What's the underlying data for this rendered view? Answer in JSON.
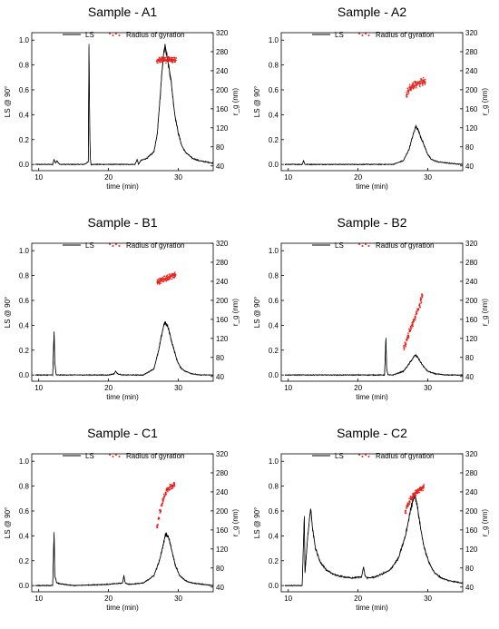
{
  "chart_data": [
    {
      "type": "line",
      "title": "Sample - A1",
      "xlabel": "time (min)",
      "ylabel": "LS @ 90°",
      "y2label": "r_g (nm)",
      "xlim": [
        9,
        35
      ],
      "ylim": [
        -0.05,
        1.06
      ],
      "y2lim": [
        30,
        320
      ],
      "xticks": [
        10,
        20,
        30
      ],
      "yticks": [
        0.0,
        0.2,
        0.4,
        0.6,
        0.8,
        1.0
      ],
      "y2ticks": [
        40,
        80,
        120,
        160,
        200,
        240,
        280,
        320
      ],
      "legend": {
        "position": "top",
        "entries": [
          "LS",
          "Radius of gyration"
        ]
      },
      "colors": {
        "ls": "#000000",
        "rg": "#e8231f"
      },
      "series": [
        {
          "name": "LS",
          "axis": "left",
          "x": [
            9.5,
            12.0,
            12.2,
            12.4,
            12.6,
            13.0,
            16.5,
            17.1,
            17.2,
            17.3,
            17.4,
            17.5,
            17.7,
            18.5,
            23.8,
            24.1,
            24.3,
            24.6,
            25.5,
            26.5,
            27.0,
            27.4,
            27.8,
            28.1,
            28.3,
            28.6,
            28.9,
            29.2,
            29.5,
            30.0,
            30.5,
            31.0,
            32.0,
            33.0,
            34.0,
            35.0
          ],
          "y": [
            0.0,
            0.0,
            0.04,
            0.01,
            0.03,
            0.0,
            0.0,
            0.02,
            0.97,
            0.32,
            0.04,
            0.0,
            0.0,
            0.0,
            0.0,
            0.04,
            0.0,
            0.03,
            0.05,
            0.1,
            0.25,
            0.55,
            0.85,
            0.97,
            0.9,
            0.8,
            0.7,
            0.55,
            0.4,
            0.25,
            0.15,
            0.1,
            0.05,
            0.03,
            0.02,
            0.01
          ]
        },
        {
          "name": "Radius of gyration",
          "axis": "right",
          "marker": "dot",
          "x": [
            27.0,
            27.2,
            27.4,
            27.6,
            27.8,
            28.0,
            28.2,
            28.4,
            28.6,
            28.8,
            29.0,
            29.2,
            29.4,
            29.6
          ],
          "y": [
            262,
            263,
            262,
            264,
            263,
            263,
            262,
            263,
            264,
            262,
            263,
            262,
            263,
            262
          ]
        }
      ]
    },
    {
      "type": "line",
      "title": "Sample - A2",
      "xlabel": "time (min)",
      "ylabel": "LS @ 90°",
      "y2label": "r_g (nm)",
      "xlim": [
        9,
        35
      ],
      "ylim": [
        -0.05,
        1.06
      ],
      "y2lim": [
        30,
        320
      ],
      "xticks": [
        10,
        20,
        30
      ],
      "yticks": [
        0.0,
        0.2,
        0.4,
        0.6,
        0.8,
        1.0
      ],
      "y2ticks": [
        40,
        80,
        120,
        160,
        200,
        240,
        280,
        320
      ],
      "legend": {
        "position": "top",
        "entries": [
          "LS",
          "Radius of gyration"
        ]
      },
      "colors": {
        "ls": "#000000",
        "rg": "#e8231f"
      },
      "series": [
        {
          "name": "LS",
          "axis": "left",
          "x": [
            9.5,
            12.0,
            12.2,
            12.4,
            13.0,
            25.0,
            26.5,
            27.3,
            27.9,
            28.3,
            28.6,
            29.0,
            29.5,
            30.0,
            30.5,
            31.5,
            33.0,
            35.0
          ],
          "y": [
            0.0,
            0.0,
            0.03,
            0.0,
            0.0,
            0.0,
            0.03,
            0.12,
            0.24,
            0.31,
            0.28,
            0.22,
            0.15,
            0.08,
            0.04,
            0.02,
            0.01,
            0.0
          ]
        },
        {
          "name": "Radius of gyration",
          "axis": "right",
          "marker": "dot",
          "x": [
            27.0,
            27.2,
            27.4,
            27.6,
            27.8,
            28.0,
            28.2,
            28.4,
            28.6,
            28.8,
            29.0,
            29.2,
            29.4,
            29.6
          ],
          "y": [
            190,
            198,
            205,
            202,
            210,
            208,
            214,
            210,
            216,
            212,
            218,
            214,
            220,
            216
          ]
        }
      ]
    },
    {
      "type": "line",
      "title": "Sample - B1",
      "xlabel": "time (min)",
      "ylabel": "LS @ 90°",
      "y2label": "r_g (nm)",
      "xlim": [
        9,
        35
      ],
      "ylim": [
        -0.05,
        1.06
      ],
      "y2lim": [
        30,
        320
      ],
      "xticks": [
        10,
        20,
        30
      ],
      "yticks": [
        0.0,
        0.2,
        0.4,
        0.6,
        0.8,
        1.0
      ],
      "y2ticks": [
        40,
        80,
        120,
        160,
        200,
        240,
        280,
        320
      ],
      "legend": {
        "position": "top",
        "entries": [
          "LS",
          "Radius of gyration"
        ]
      },
      "colors": {
        "ls": "#000000",
        "rg": "#e8231f"
      },
      "series": [
        {
          "name": "LS",
          "axis": "left",
          "x": [
            9.5,
            12.0,
            12.2,
            12.3,
            12.5,
            13.0,
            20.0,
            20.8,
            21.0,
            21.3,
            22.0,
            25.0,
            26.5,
            27.2,
            27.6,
            28.0,
            28.4,
            28.7,
            29.0,
            29.4,
            29.8,
            30.3,
            31.0,
            32.0,
            33.0,
            35.0
          ],
          "y": [
            0.0,
            0.0,
            0.35,
            0.1,
            0.0,
            0.0,
            0.0,
            0.01,
            0.03,
            0.01,
            0.0,
            0.0,
            0.05,
            0.2,
            0.32,
            0.42,
            0.4,
            0.35,
            0.28,
            0.2,
            0.12,
            0.06,
            0.03,
            0.01,
            0.0,
            0.0
          ]
        },
        {
          "name": "Radius of gyration",
          "axis": "right",
          "marker": "dot",
          "x": [
            27.0,
            27.2,
            27.4,
            27.6,
            27.8,
            28.0,
            28.2,
            28.4,
            28.6,
            28.8,
            29.0,
            29.2,
            29.4,
            29.6
          ],
          "y": [
            238,
            240,
            241,
            243,
            244,
            245,
            246,
            248,
            249,
            250,
            251,
            252,
            253,
            254
          ]
        }
      ]
    },
    {
      "type": "line",
      "title": "Sample - B2",
      "xlabel": "time (min)",
      "ylabel": "LS @ 90°",
      "y2label": "r_g (nm)",
      "xlim": [
        9,
        35
      ],
      "ylim": [
        -0.05,
        1.06
      ],
      "y2lim": [
        30,
        320
      ],
      "xticks": [
        10,
        20,
        30
      ],
      "yticks": [
        0.0,
        0.2,
        0.4,
        0.6,
        0.8,
        1.0
      ],
      "y2ticks": [
        40,
        80,
        120,
        160,
        200,
        240,
        280,
        320
      ],
      "legend": {
        "position": "top",
        "entries": [
          "LS",
          "Radius of gyration"
        ]
      },
      "colors": {
        "ls": "#000000",
        "rg": "#e8231f"
      },
      "series": [
        {
          "name": "LS",
          "axis": "left",
          "x": [
            9.5,
            12.0,
            20.0,
            23.8,
            24.0,
            24.1,
            24.3,
            25.0,
            26.5,
            27.2,
            27.8,
            28.2,
            28.6,
            29.0,
            29.5,
            30.0,
            31.0,
            32.5,
            35.0
          ],
          "y": [
            0.0,
            0.0,
            0.0,
            0.0,
            0.3,
            0.05,
            0.0,
            0.0,
            0.03,
            0.08,
            0.13,
            0.16,
            0.14,
            0.1,
            0.06,
            0.03,
            0.01,
            0.0,
            0.0
          ]
        },
        {
          "name": "Radius of gyration",
          "axis": "right",
          "marker": "dot",
          "x": [
            26.6,
            26.8,
            27.0,
            27.2,
            27.4,
            27.6,
            27.8,
            28.0,
            28.2,
            28.4,
            28.6,
            28.8,
            29.0,
            29.2
          ],
          "y": [
            100,
            108,
            118,
            125,
            135,
            142,
            150,
            158,
            165,
            172,
            180,
            190,
            200,
            210
          ]
        }
      ]
    },
    {
      "type": "line",
      "title": "Sample - C1",
      "xlabel": "time (min)",
      "ylabel": "LS @ 90°",
      "y2label": "r_g (nm)",
      "xlim": [
        9,
        35
      ],
      "ylim": [
        -0.05,
        1.06
      ],
      "y2lim": [
        30,
        320
      ],
      "xticks": [
        10,
        20,
        30
      ],
      "yticks": [
        0.0,
        0.2,
        0.4,
        0.6,
        0.8,
        1.0
      ],
      "y2ticks": [
        40,
        80,
        120,
        160,
        200,
        240,
        280,
        320
      ],
      "legend": {
        "position": "top",
        "entries": [
          "LS",
          "Radius of gyration"
        ]
      },
      "colors": {
        "ls": "#000000",
        "rg": "#e8231f"
      },
      "series": [
        {
          "name": "LS",
          "axis": "left",
          "x": [
            9.5,
            12.0,
            12.2,
            12.3,
            12.6,
            13.5,
            15.0,
            20.0,
            22.0,
            22.2,
            22.4,
            23.0,
            25.0,
            26.5,
            27.3,
            27.8,
            28.2,
            28.5,
            28.8,
            29.2,
            29.6,
            30.2,
            31.0,
            32.0,
            33.5,
            35.0
          ],
          "y": [
            0.0,
            0.0,
            0.43,
            0.08,
            0.02,
            0.01,
            0.0,
            0.01,
            0.02,
            0.08,
            0.02,
            0.01,
            0.02,
            0.08,
            0.2,
            0.32,
            0.42,
            0.4,
            0.35,
            0.25,
            0.16,
            0.08,
            0.04,
            0.02,
            0.01,
            0.0
          ]
        },
        {
          "name": "Radius of gyration",
          "axis": "right",
          "marker": "dot",
          "x": [
            27.0,
            27.2,
            27.4,
            27.6,
            27.8,
            28.0,
            28.2,
            28.4,
            28.6,
            28.8,
            29.0,
            29.2,
            29.4
          ],
          "y": [
            170,
            185,
            200,
            212,
            222,
            230,
            238,
            244,
            248,
            250,
            252,
            253,
            254
          ]
        }
      ]
    },
    {
      "type": "line",
      "title": "Sample - C2",
      "xlabel": "time (min)",
      "ylabel": "LS @ 90°",
      "y2label": "r_g (nm)",
      "xlim": [
        9,
        35
      ],
      "ylim": [
        -0.05,
        1.06
      ],
      "y2lim": [
        30,
        320
      ],
      "xticks": [
        10,
        20,
        30
      ],
      "yticks": [
        0.0,
        0.2,
        0.4,
        0.6,
        0.8,
        1.0
      ],
      "y2ticks": [
        40,
        80,
        120,
        160,
        200,
        240,
        280,
        320
      ],
      "legend": {
        "position": "top",
        "entries": [
          "LS",
          "Radius of gyration"
        ]
      },
      "colors": {
        "ls": "#000000",
        "rg": "#e8231f"
      },
      "series": [
        {
          "name": "LS",
          "axis": "left",
          "x": [
            9.5,
            12.0,
            12.3,
            12.4,
            12.8,
            13.2,
            13.5,
            13.9,
            14.5,
            15.5,
            17.0,
            19.0,
            20.5,
            20.8,
            21.0,
            21.3,
            22.5,
            24.5,
            25.8,
            26.8,
            27.5,
            28.0,
            28.3,
            28.6,
            29.0,
            29.5,
            30.2,
            31.0,
            32.0,
            33.0,
            34.0,
            35.0
          ],
          "y": [
            0.0,
            0.0,
            0.56,
            0.1,
            0.4,
            0.62,
            0.45,
            0.3,
            0.2,
            0.12,
            0.08,
            0.06,
            0.07,
            0.15,
            0.08,
            0.06,
            0.07,
            0.12,
            0.22,
            0.4,
            0.6,
            0.73,
            0.7,
            0.6,
            0.45,
            0.3,
            0.18,
            0.1,
            0.06,
            0.04,
            0.03,
            0.02
          ]
        },
        {
          "name": "Radius of gyration",
          "axis": "right",
          "marker": "dot",
          "x": [
            26.8,
            27.0,
            27.2,
            27.4,
            27.6,
            27.8,
            28.0,
            28.2,
            28.4,
            28.6,
            28.8,
            29.0,
            29.2,
            29.4
          ],
          "y": [
            200,
            208,
            214,
            220,
            226,
            230,
            234,
            238,
            240,
            242,
            244,
            246,
            248,
            250
          ]
        }
      ]
    }
  ]
}
